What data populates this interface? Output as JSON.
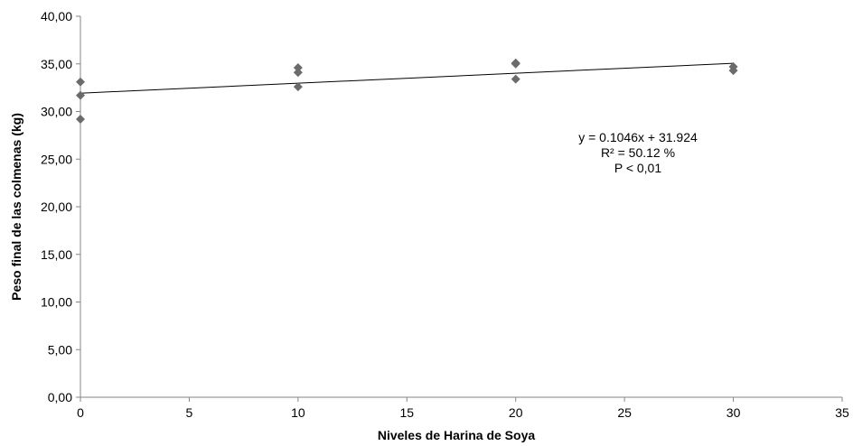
{
  "chart_data": {
    "type": "scatter",
    "title": "",
    "xlabel": "Niveles de Harina de Soya",
    "ylabel": "Peso final de las colmenas (kg)",
    "xlim": [
      0,
      35
    ],
    "ylim": [
      0,
      40
    ],
    "x_ticks": [
      0,
      5,
      10,
      15,
      20,
      25,
      30,
      35
    ],
    "x_tick_labels": [
      "0",
      "5",
      "10",
      "15",
      "20",
      "25",
      "30",
      "35"
    ],
    "y_ticks": [
      0,
      5,
      10,
      15,
      20,
      25,
      30,
      35,
      40
    ],
    "y_tick_labels": [
      "0,00",
      "5,00",
      "10,00",
      "15,00",
      "20,00",
      "25,00",
      "30,00",
      "35,00",
      "40,00"
    ],
    "grid": false,
    "legend": "none",
    "marker_color": "#6b6b6b",
    "line_color": "#000000",
    "points": [
      {
        "x": 0,
        "y": 33.1
      },
      {
        "x": 0,
        "y": 31.7
      },
      {
        "x": 0,
        "y": 29.2
      },
      {
        "x": 10,
        "y": 34.6
      },
      {
        "x": 10,
        "y": 34.1
      },
      {
        "x": 10,
        "y": 32.6
      },
      {
        "x": 20,
        "y": 35.1
      },
      {
        "x": 20,
        "y": 35.0
      },
      {
        "x": 20,
        "y": 33.4
      },
      {
        "x": 30,
        "y": 34.7
      },
      {
        "x": 30,
        "y": 34.3
      }
    ],
    "trendline": {
      "slope": 0.1046,
      "intercept": 31.924,
      "x_range": [
        0,
        30
      ]
    },
    "annotations": [
      "y = 0.1046x + 31.924",
      "R² = 50.12 %",
      "P < 0,01"
    ]
  }
}
